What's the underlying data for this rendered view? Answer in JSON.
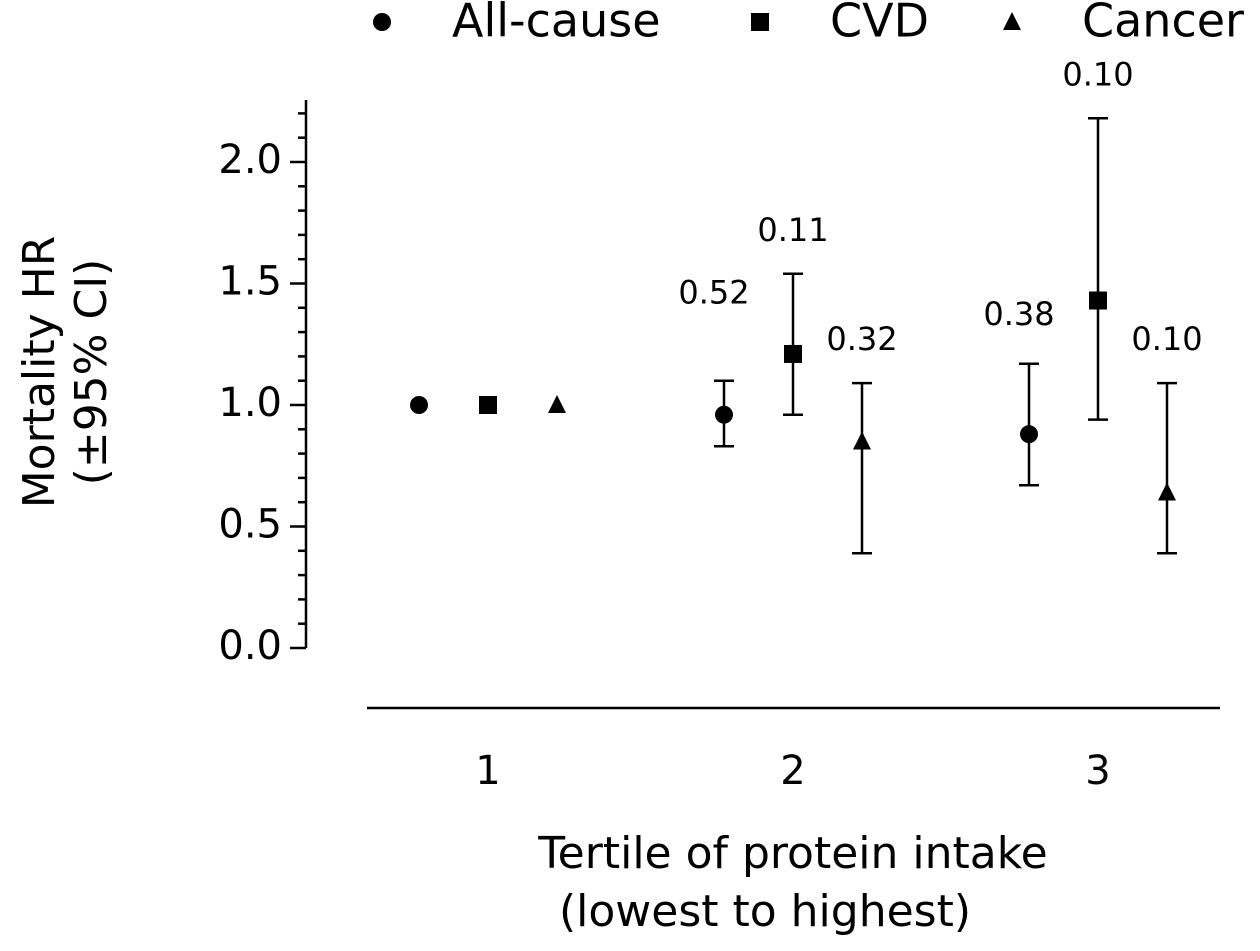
{
  "chart_data": {
    "type": "scatter",
    "legend_position": "top",
    "ylabel_lines": [
      "Mortality HR",
      "(±95% CI)"
    ],
    "xlabel_lines": [
      "Tertile of protein intake",
      "(lowest to highest)"
    ],
    "ylim": [
      0,
      2.2
    ],
    "yticks": [
      "0.0",
      "0.5",
      "1.0",
      "1.5",
      "2.0"
    ],
    "ytick_values": [
      0.0,
      0.5,
      1.0,
      1.5,
      2.0
    ],
    "categories": [
      "1",
      "2",
      "3"
    ],
    "series": [
      {
        "name": "All-cause",
        "marker": "circle",
        "values": [
          1.0,
          0.96,
          0.88
        ],
        "ci_low": [
          null,
          0.83,
          0.67
        ],
        "ci_high": [
          null,
          1.1,
          1.17
        ],
        "p_labels": [
          "",
          "0.52",
          "0.38"
        ]
      },
      {
        "name": "CVD",
        "marker": "square",
        "values": [
          1.0,
          1.21,
          1.43
        ],
        "ci_low": [
          null,
          0.96,
          0.94
        ],
        "ci_high": [
          null,
          1.54,
          2.18
        ],
        "p_labels": [
          "",
          "0.11",
          "0.10"
        ]
      },
      {
        "name": "Cancer",
        "marker": "triangle",
        "values": [
          1.0,
          0.85,
          0.64
        ],
        "ci_low": [
          null,
          0.39,
          0.39
        ],
        "ci_high": [
          null,
          1.09,
          1.09
        ],
        "p_labels": [
          "",
          "0.32",
          "0.10"
        ]
      }
    ],
    "colors": {
      "marks": "#000000",
      "background": "#ffffff"
    }
  }
}
